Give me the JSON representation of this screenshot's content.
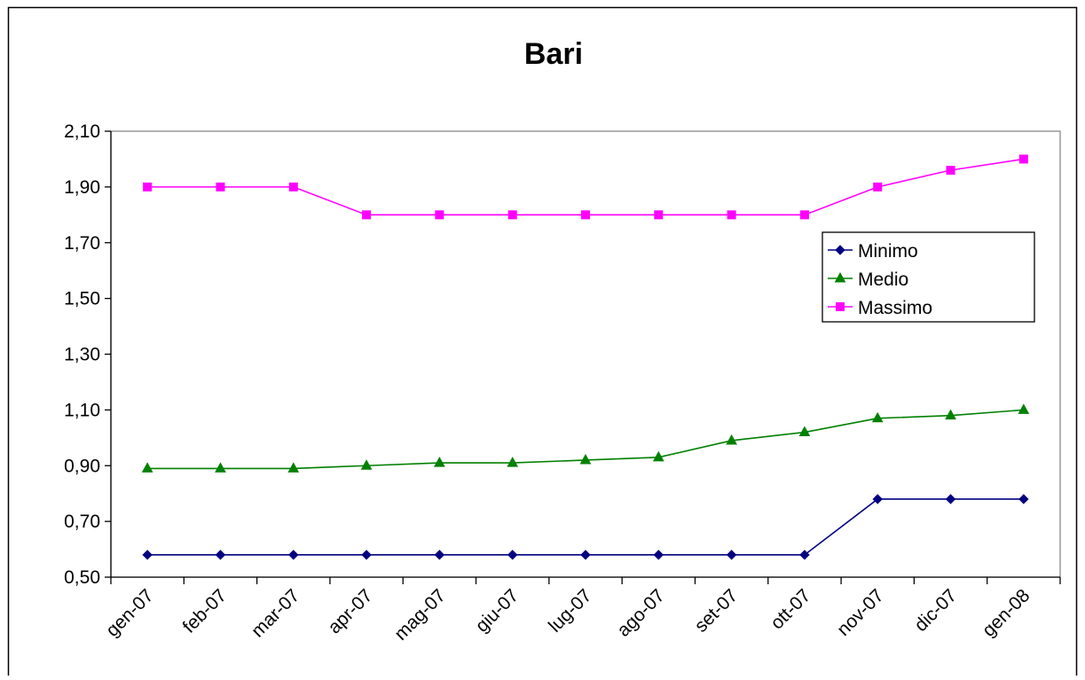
{
  "chart_data": {
    "type": "line",
    "title": "Bari",
    "xlabel": "",
    "ylabel": "",
    "categories": [
      "gen-07",
      "feb-07",
      "mar-07",
      "apr-07",
      "mag-07",
      "giu-07",
      "lug-07",
      "ago-07",
      "set-07",
      "ott-07",
      "nov-07",
      "dic-07",
      "gen-08"
    ],
    "yticks": [
      "0,50",
      "0,70",
      "0,90",
      "1,10",
      "1,30",
      "1,50",
      "1,70",
      "1,90",
      "2,10"
    ],
    "ylim": [
      0.5,
      2.1
    ],
    "grid": false,
    "legend_position": "right",
    "series": [
      {
        "name": "Minimo",
        "color": "#000080",
        "marker": "diamond",
        "values": [
          0.58,
          0.58,
          0.58,
          0.58,
          0.58,
          0.58,
          0.58,
          0.58,
          0.58,
          0.58,
          0.78,
          0.78,
          0.78
        ]
      },
      {
        "name": "Medio",
        "color": "#008000",
        "marker": "triangle",
        "values": [
          0.89,
          0.89,
          0.89,
          0.9,
          0.91,
          0.91,
          0.92,
          0.93,
          0.99,
          1.02,
          1.07,
          1.08,
          1.1
        ]
      },
      {
        "name": "Massimo",
        "color": "#ff00ff",
        "marker": "square",
        "values": [
          1.9,
          1.9,
          1.9,
          1.8,
          1.8,
          1.8,
          1.8,
          1.8,
          1.8,
          1.8,
          1.9,
          1.96,
          2.0
        ]
      }
    ]
  }
}
